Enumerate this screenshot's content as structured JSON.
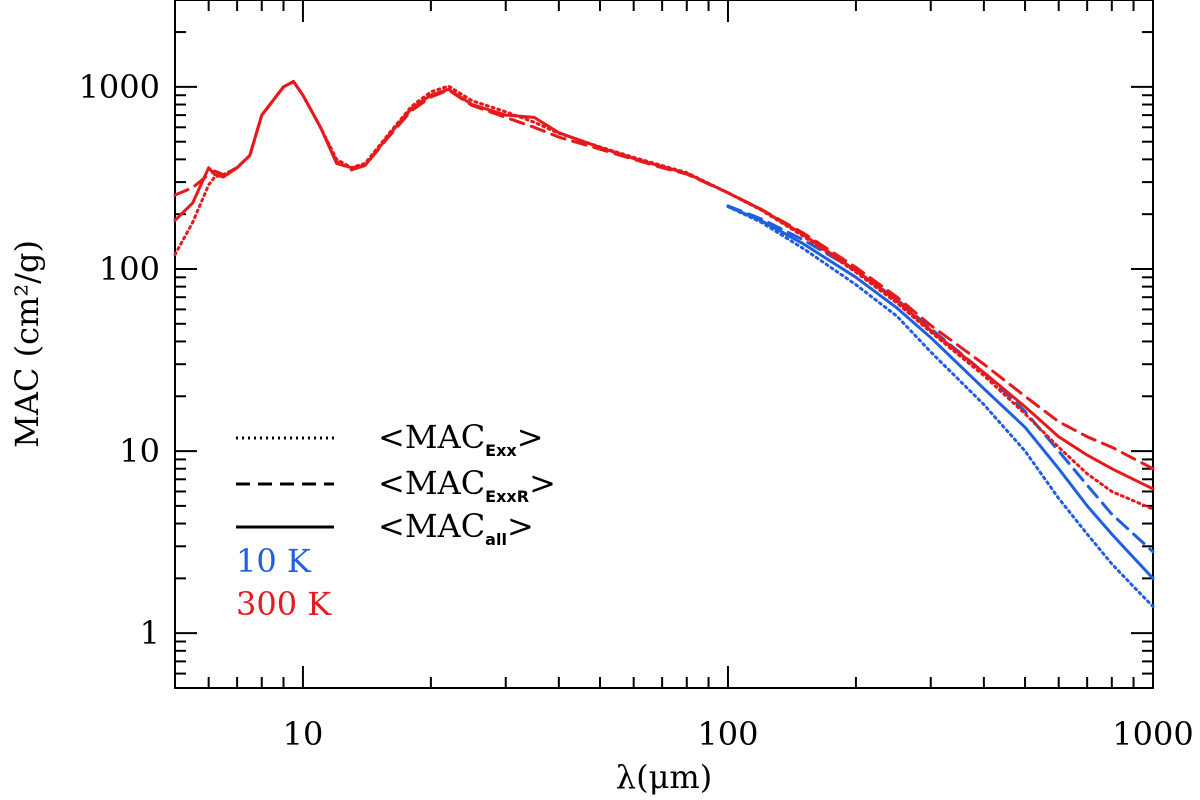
{
  "chart_data": {
    "type": "line",
    "title": "",
    "xlabel": "λ(μm)",
    "ylabel": "MAC (cm²/g)",
    "xscale": "log",
    "yscale": "log",
    "xlim": [
      5,
      1000
    ],
    "ylim": [
      0.5,
      3000
    ],
    "x_ticks": [
      {
        "value": 10,
        "label": "10"
      },
      {
        "value": 100,
        "label": "100"
      },
      {
        "value": 1000,
        "label": "1000"
      }
    ],
    "y_ticks": [
      {
        "value": 1,
        "label": "1"
      },
      {
        "value": 10,
        "label": "10"
      },
      {
        "value": 100,
        "label": "100"
      },
      {
        "value": 1000,
        "label": "1000"
      }
    ],
    "grid": false,
    "legend": {
      "placement": "lower-left",
      "style_entries": [
        {
          "style": "dotted",
          "text": "<MAC",
          "sub": "Exx",
          "suffix": ">"
        },
        {
          "style": "dashed",
          "text": "<MAC",
          "sub": "ExxR",
          "suffix": ">"
        },
        {
          "style": "solid",
          "text": "<MAC",
          "sub": "all",
          "suffix": ">"
        }
      ],
      "temp_entries": [
        {
          "label": "10 K",
          "color": "#1f5fe0"
        },
        {
          "label": "300 K",
          "color": "#e41a1c"
        }
      ]
    },
    "series": [
      {
        "name": "10 K",
        "variant": "MAC_Exx",
        "color": "#1f5fe0",
        "style": "dotted",
        "x": [
          100,
          120,
          150,
          200,
          250,
          300,
          400,
          500,
          600,
          700,
          800,
          900,
          1000
        ],
        "y": [
          220,
          180,
          130,
          82,
          55,
          35,
          18,
          10,
          5.5,
          3.5,
          2.4,
          1.8,
          1.4
        ]
      },
      {
        "name": "10 K",
        "variant": "MAC_ExxR",
        "color": "#1f5fe0",
        "style": "dashed",
        "x": [
          100,
          120,
          150,
          200,
          250,
          300,
          400,
          500,
          600,
          700,
          800,
          900,
          1000
        ],
        "y": [
          222,
          188,
          145,
          98,
          68,
          47,
          27,
          16.5,
          10,
          6.5,
          4.5,
          3.5,
          2.8
        ]
      },
      {
        "name": "10 K",
        "variant": "MAC_all",
        "color": "#1f5fe0",
        "style": "solid",
        "x": [
          100,
          120,
          150,
          200,
          250,
          300,
          400,
          500,
          600,
          700,
          800,
          900,
          1000
        ],
        "y": [
          220,
          184,
          138,
          90,
          61,
          42,
          22,
          13.5,
          8,
          5,
          3.5,
          2.6,
          2.0
        ]
      },
      {
        "name": "300 K",
        "variant": "MAC_Exx",
        "color": "#e41a1c",
        "style": "dotted",
        "x": [
          5,
          5.5,
          6,
          6.2,
          6.5,
          7,
          7.5,
          8,
          9,
          9.5,
          10,
          11,
          12,
          13,
          14,
          16,
          18,
          20,
          22,
          25,
          30,
          35,
          40,
          50,
          60,
          70,
          80,
          100,
          120,
          150,
          200,
          250,
          300,
          400,
          500,
          600,
          700,
          800,
          1000
        ],
        "y": [
          120,
          180,
          290,
          320,
          330,
          360,
          420,
          700,
          1000,
          1070,
          900,
          600,
          400,
          360,
          380,
          560,
          780,
          940,
          1010,
          840,
          730,
          640,
          555,
          468,
          410,
          370,
          338,
          262,
          210,
          152,
          96,
          65,
          45,
          26,
          16,
          10.5,
          7.5,
          6.0,
          4.8
        ]
      },
      {
        "name": "300 K",
        "variant": "MAC_ExxR",
        "color": "#e41a1c",
        "style": "dashed",
        "x": [
          5,
          5.5,
          6,
          6.2,
          6.5,
          7,
          7.5,
          8,
          9,
          9.5,
          10,
          11,
          12,
          13,
          14,
          16,
          18,
          20,
          22,
          25,
          30,
          35,
          40,
          50,
          60,
          70,
          80,
          100,
          120,
          150,
          200,
          250,
          300,
          400,
          500,
          600,
          700,
          800,
          1000
        ],
        "y": [
          255,
          280,
          330,
          345,
          330,
          360,
          420,
          700,
          1000,
          1070,
          900,
          600,
          390,
          350,
          370,
          540,
          740,
          880,
          960,
          790,
          680,
          600,
          530,
          455,
          400,
          360,
          332,
          262,
          212,
          158,
          102,
          70,
          49,
          30,
          20,
          14.5,
          12,
          10.5,
          8.0
        ]
      },
      {
        "name": "300 K",
        "variant": "MAC_all",
        "color": "#e41a1c",
        "style": "solid",
        "x": [
          5,
          5.5,
          6,
          6.2,
          6.5,
          7,
          7.5,
          8,
          9,
          9.5,
          10,
          11,
          12,
          13,
          14,
          16,
          18,
          20,
          22,
          25,
          30,
          35,
          40,
          50,
          60,
          70,
          80,
          100,
          120,
          150,
          200,
          250,
          300,
          400,
          500,
          600,
          700,
          800,
          1000
        ],
        "y": [
          185,
          230,
          360,
          330,
          320,
          360,
          420,
          700,
          1000,
          1070,
          900,
          600,
          380,
          360,
          370,
          550,
          760,
          900,
          970,
          800,
          700,
          680,
          560,
          465,
          405,
          365,
          335,
          262,
          212,
          155,
          98,
          67,
          46,
          27,
          17.5,
          12,
          9.5,
          8.0,
          6.2
        ]
      }
    ]
  }
}
